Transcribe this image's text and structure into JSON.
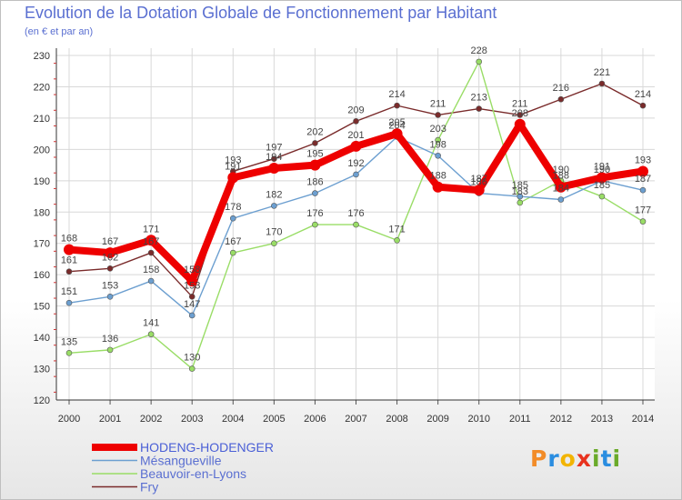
{
  "chart_data": {
    "type": "line",
    "title": "Evolution de la Dotation Globale de Fonctionnement par Habitant",
    "subtitle": "(en € et par an)",
    "xlabel": "",
    "ylabel": "",
    "categories": [
      "2000",
      "2001",
      "2002",
      "2003",
      "2004",
      "2005",
      "2006",
      "2007",
      "2008",
      "2009",
      "2010",
      "2011",
      "2012",
      "2013",
      "2014"
    ],
    "ylim": [
      120,
      230
    ],
    "yticks": [
      120,
      130,
      140,
      150,
      160,
      170,
      180,
      190,
      200,
      210,
      220,
      230
    ],
    "grid": true,
    "legend_position": "bottom-left",
    "series": [
      {
        "name": "HODENG-HODENGER",
        "color": "#ee0000",
        "values": [
          168,
          167,
          171,
          158,
          191,
          194,
          195,
          201,
          205,
          188,
          187,
          208,
          188,
          191,
          193
        ]
      },
      {
        "name": "Mésangueville",
        "color": "#6c9fd0",
        "values": [
          151,
          153,
          158,
          147,
          178,
          182,
          186,
          192,
          204,
          198,
          186,
          185,
          184,
          190,
          187
        ]
      },
      {
        "name": "Beauvoir-en-Lyons",
        "color": "#99dd66",
        "values": [
          135,
          136,
          141,
          130,
          167,
          170,
          176,
          176,
          171,
          203,
          228,
          183,
          190,
          185,
          177
        ]
      },
      {
        "name": "Fry",
        "color": "#7a2b2b",
        "values": [
          161,
          162,
          167,
          153,
          193,
          197,
          202,
          209,
          214,
          211,
          213,
          211,
          216,
          221,
          214
        ]
      }
    ]
  },
  "logo": {
    "text": "Proxiti",
    "letters": [
      {
        "ch": "P",
        "color": "#f28c28"
      },
      {
        "ch": "r",
        "color": "#2a8de0"
      },
      {
        "ch": "o",
        "color": "#f2b400"
      },
      {
        "ch": "x",
        "color": "#e8321e"
      },
      {
        "ch": "i",
        "color": "#6aaa2a"
      },
      {
        "ch": "t",
        "color": "#2a8de0"
      },
      {
        "ch": "i",
        "color": "#6aaa2a"
      }
    ]
  }
}
